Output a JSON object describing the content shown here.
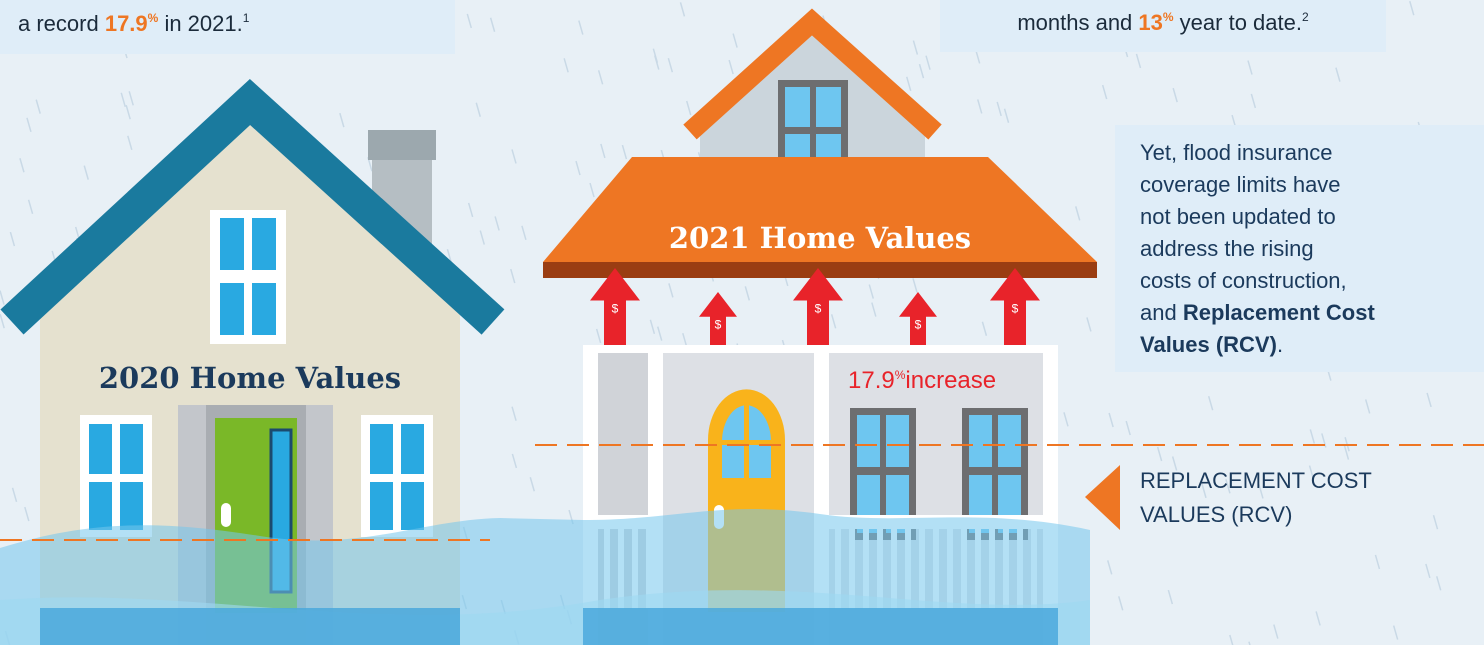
{
  "top_left_note": {
    "lead": "a record ",
    "highlight": "17.9",
    "unit": "%",
    "tail": " in 2021.",
    "footnote": "1"
  },
  "top_right_note": {
    "lead": "months and ",
    "highlight": "13",
    "unit": "%",
    "tail": " year to date.",
    "footnote": "2"
  },
  "house_2020": {
    "label": "2020 Home Values"
  },
  "house_2021": {
    "label": "2021 Home Values",
    "arrows": [
      "$",
      "$",
      "$",
      "$",
      "$"
    ],
    "increase": {
      "value": "17.9",
      "unit": "%",
      "text": "increase"
    }
  },
  "paragraph": {
    "lines": [
      [
        {
          "text": "Yet, flood insurance"
        }
      ],
      [
        {
          "text": "coverage limits have"
        }
      ],
      [
        {
          "text": "not been updated to"
        }
      ],
      [
        {
          "text": "address the rising"
        }
      ],
      [
        {
          "text": "costs of construction,"
        }
      ],
      [
        {
          "text": "and "
        },
        {
          "text": "Replacement Cost",
          "bold": true
        }
      ],
      [
        {
          "text": "Values (RCV)",
          "bold": true
        },
        {
          "text": "."
        }
      ]
    ]
  },
  "rcv_marker": {
    "lines": [
      "REPLACEMENT COST",
      "VALUES (RCV)"
    ]
  }
}
